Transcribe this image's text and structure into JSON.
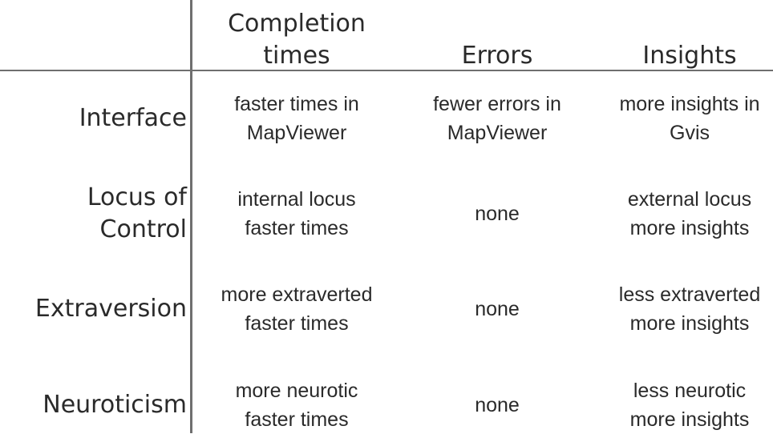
{
  "headers": {
    "col1": "Completion\ntimes",
    "col2": "Errors",
    "col3": "Insights"
  },
  "rows": [
    {
      "label": "Interface",
      "completion": "faster times in\nMapViewer",
      "errors": "fewer errors in\nMapViewer",
      "insights": "more insights in\nGvis"
    },
    {
      "label": "Locus of\nControl",
      "completion": "internal locus\nfaster times",
      "errors": "none",
      "insights": "external locus\nmore insights"
    },
    {
      "label": "Extraversion",
      "completion": "more extraverted\nfaster times",
      "errors": "none",
      "insights": "less extraverted\nmore insights"
    },
    {
      "label": "Neuroticism",
      "completion": "more neurotic\nfaster times",
      "errors": "none",
      "insights": "less neurotic\nmore insights"
    }
  ]
}
